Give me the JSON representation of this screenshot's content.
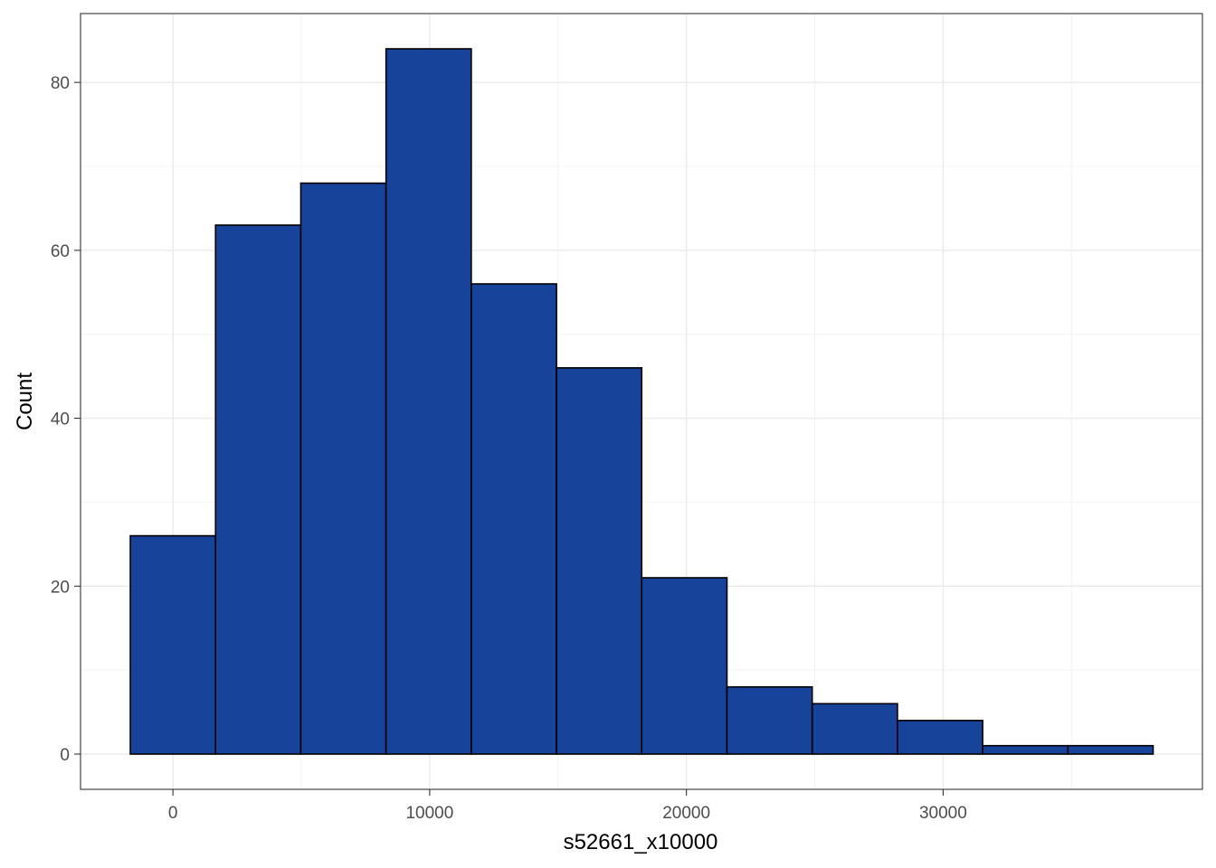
{
  "chart_data": {
    "type": "bar",
    "subtype": "histogram",
    "title": "",
    "xlabel": "s52661_x10000",
    "ylabel": "Count",
    "bins": [
      {
        "x0": -1660,
        "x1": 1660,
        "count": 26
      },
      {
        "x0": 1660,
        "x1": 4980,
        "count": 63
      },
      {
        "x0": 4980,
        "x1": 8300,
        "count": 68
      },
      {
        "x0": 8300,
        "x1": 11620,
        "count": 84
      },
      {
        "x0": 11620,
        "x1": 14940,
        "count": 56
      },
      {
        "x0": 14940,
        "x1": 18260,
        "count": 46
      },
      {
        "x0": 18260,
        "x1": 21580,
        "count": 21
      },
      {
        "x0": 21580,
        "x1": 24900,
        "count": 8
      },
      {
        "x0": 24900,
        "x1": 28220,
        "count": 6
      },
      {
        "x0": 28220,
        "x1": 31540,
        "count": 4
      },
      {
        "x0": 31540,
        "x1": 34860,
        "count": 1
      },
      {
        "x0": 34860,
        "x1": 38180,
        "count": 1
      }
    ],
    "xlim": [
      -3600,
      40100
    ],
    "ylim": [
      -4.2,
      88.2
    ],
    "x_ticks": [
      0,
      10000,
      20000,
      30000
    ],
    "x_tick_labels": [
      "0",
      "10000",
      "20000",
      "30000"
    ],
    "y_ticks": [
      0,
      20,
      40,
      60,
      80
    ],
    "y_tick_labels": [
      "0",
      "20",
      "40",
      "60",
      "80"
    ],
    "grid": true,
    "legend": "none",
    "colors": {
      "bar_fill": "#17439A",
      "bar_outline": "#000000",
      "grid_major": "#EBEBEB",
      "grid_minor": "#F4F4F4",
      "panel_border": "#333333"
    }
  }
}
